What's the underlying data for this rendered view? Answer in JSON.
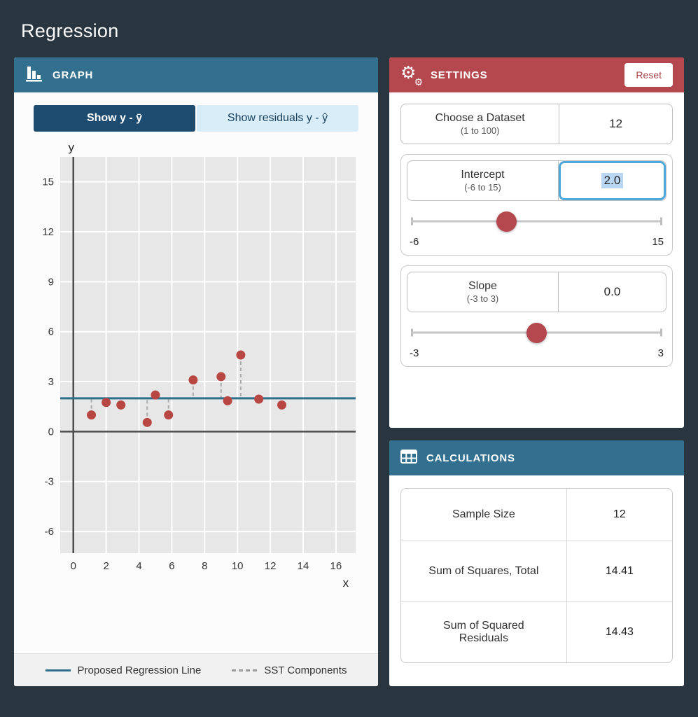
{
  "app": {
    "title": "Regression"
  },
  "graph_panel": {
    "title": "GRAPH",
    "icon": "bar-chart-icon",
    "tabs": [
      {
        "label": "Show y - ȳ",
        "active": true
      },
      {
        "label": "Show residuals y - ŷ",
        "active": false
      }
    ],
    "legend": [
      {
        "label": "Proposed Regression Line",
        "style": "solid-teal"
      },
      {
        "label": "SST Components",
        "style": "dashed-gray"
      }
    ]
  },
  "chart_data": {
    "type": "scatter",
    "title": "",
    "xlabel": "x",
    "ylabel": "y",
    "xlim": [
      -0.8,
      17.2
    ],
    "ylim": [
      -7.3,
      16.5
    ],
    "xticks": [
      0,
      2,
      4,
      6,
      8,
      10,
      12,
      14,
      16
    ],
    "yticks": [
      -6,
      -3,
      0,
      3,
      6,
      9,
      12,
      15
    ],
    "points": [
      [
        1.1,
        1.0
      ],
      [
        2.0,
        1.75
      ],
      [
        2.9,
        1.6
      ],
      [
        4.5,
        0.55
      ],
      [
        5.0,
        2.2
      ],
      [
        5.8,
        1.0
      ],
      [
        7.3,
        3.1
      ],
      [
        9.0,
        3.3
      ],
      [
        9.4,
        1.85
      ],
      [
        10.2,
        4.6
      ],
      [
        11.3,
        1.95
      ],
      [
        12.7,
        1.6
      ]
    ],
    "regression_line": {
      "intercept": 2.0,
      "slope": 0.0
    },
    "grid": true,
    "colors": {
      "plot_bg": "#e7e7e7",
      "grid": "#ffffff",
      "axis": "#4d4d4d",
      "line": "#2e6e8c",
      "point": "#b84743",
      "sst": "#ababab"
    }
  },
  "settings_panel": {
    "title": "SETTINGS",
    "icon": "gear-icon",
    "icon_glyph": "⚙",
    "reset_label": "Reset",
    "dataset": {
      "label": "Choose a Dataset",
      "range": "(1 to 100)",
      "value": "12"
    },
    "intercept": {
      "label": "Intercept",
      "range": "(-6 to 15)",
      "value": "2.0",
      "min": "-6",
      "max": "15",
      "slider_pos": 0.381
    },
    "slope": {
      "label": "Slope",
      "range": "(-3 to 3)",
      "value": "0.0",
      "min": "-3",
      "max": "3",
      "slider_pos": 0.5
    }
  },
  "calculations_panel": {
    "title": "CALCULATIONS",
    "icon": "table-icon",
    "rows": [
      {
        "label": "Sample Size",
        "value": "12"
      },
      {
        "label": "Sum of Squares, Total",
        "value": "14.41"
      },
      {
        "label": "Sum of Squared Residuals",
        "value": "14.43"
      }
    ]
  }
}
